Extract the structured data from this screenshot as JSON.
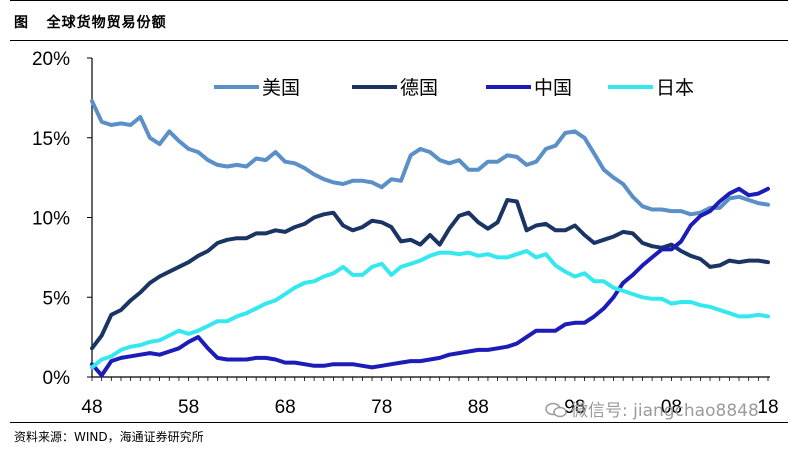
{
  "figure": {
    "title": "图   全球货物贸易份额",
    "source_note": "资料来源：WIND，海通证券研究所",
    "watermark": "微信号: jiangchao8848"
  },
  "chart_data": {
    "type": "line",
    "title": "全球货物贸易份额",
    "xlabel": "",
    "ylabel": "",
    "x_tick_labels": [
      "48",
      "58",
      "68",
      "78",
      "88",
      "98",
      "08",
      "18"
    ],
    "xlim": [
      1948,
      2018
    ],
    "ylim": [
      0,
      20
    ],
    "y_tick_labels": [
      "0%",
      "5%",
      "10%",
      "15%",
      "20%"
    ],
    "legend_position": "top-right",
    "x": [
      1948,
      1949,
      1950,
      1951,
      1952,
      1953,
      1954,
      1955,
      1956,
      1957,
      1958,
      1959,
      1960,
      1961,
      1962,
      1963,
      1964,
      1965,
      1966,
      1967,
      1968,
      1969,
      1970,
      1971,
      1972,
      1973,
      1974,
      1975,
      1976,
      1977,
      1978,
      1979,
      1980,
      1981,
      1982,
      1983,
      1984,
      1985,
      1986,
      1987,
      1988,
      1989,
      1990,
      1991,
      1992,
      1993,
      1994,
      1995,
      1996,
      1997,
      1998,
      1999,
      2000,
      2001,
      2002,
      2003,
      2004,
      2005,
      2006,
      2007,
      2008,
      2009,
      2010,
      2011,
      2012,
      2013,
      2014,
      2015,
      2016,
      2017,
      2018
    ],
    "series": [
      {
        "name": "美国",
        "color": "#5a8fc8",
        "values": [
          17.3,
          16.0,
          15.8,
          15.9,
          15.8,
          16.3,
          15.0,
          14.6,
          15.4,
          14.8,
          14.3,
          14.1,
          13.6,
          13.3,
          13.2,
          13.3,
          13.2,
          13.7,
          13.6,
          14.1,
          13.5,
          13.4,
          13.1,
          12.7,
          12.4,
          12.2,
          12.1,
          12.3,
          12.3,
          12.2,
          11.9,
          12.4,
          12.3,
          13.9,
          14.3,
          14.1,
          13.6,
          13.4,
          13.6,
          13.0,
          13.0,
          13.5,
          13.5,
          13.9,
          13.8,
          13.3,
          13.5,
          14.3,
          14.5,
          15.3,
          15.4,
          15.0,
          14.0,
          13.0,
          12.5,
          12.1,
          11.3,
          10.7,
          10.5,
          10.5,
          10.4,
          10.4,
          10.2,
          10.3,
          10.6,
          10.6,
          11.2,
          11.3,
          11.1,
          10.9,
          10.8
        ],
        "label": "美国"
      },
      {
        "name": "德国",
        "color": "#1a3563",
        "values": [
          1.8,
          2.6,
          3.9,
          4.2,
          4.8,
          5.3,
          5.9,
          6.3,
          6.6,
          6.9,
          7.2,
          7.6,
          7.9,
          8.4,
          8.6,
          8.7,
          8.7,
          9.0,
          9.0,
          9.2,
          9.1,
          9.4,
          9.6,
          10.0,
          10.2,
          10.3,
          9.5,
          9.2,
          9.4,
          9.8,
          9.7,
          9.4,
          8.5,
          8.6,
          8.3,
          8.9,
          8.3,
          9.3,
          10.1,
          10.3,
          9.7,
          9.3,
          9.7,
          11.1,
          11.0,
          9.2,
          9.5,
          9.6,
          9.2,
          9.2,
          9.5,
          8.9,
          8.4,
          8.6,
          8.8,
          9.1,
          9.0,
          8.4,
          8.2,
          8.1,
          8.3,
          7.9,
          7.6,
          7.4,
          6.9,
          7.0,
          7.3,
          7.2,
          7.3,
          7.3,
          7.2
        ],
        "label": "德国"
      },
      {
        "name": "中国",
        "color": "#1c1cb8",
        "values": [
          0.8,
          0.1,
          1.0,
          1.2,
          1.3,
          1.4,
          1.5,
          1.4,
          1.6,
          1.8,
          2.2,
          2.5,
          1.8,
          1.2,
          1.1,
          1.1,
          1.1,
          1.2,
          1.2,
          1.1,
          0.9,
          0.9,
          0.8,
          0.7,
          0.7,
          0.8,
          0.8,
          0.8,
          0.7,
          0.6,
          0.7,
          0.8,
          0.9,
          1.0,
          1.0,
          1.1,
          1.2,
          1.4,
          1.5,
          1.6,
          1.7,
          1.7,
          1.8,
          1.9,
          2.1,
          2.5,
          2.9,
          2.9,
          2.9,
          3.3,
          3.4,
          3.4,
          3.8,
          4.3,
          5.0,
          5.9,
          6.4,
          7.0,
          7.5,
          8.0,
          8.0,
          8.5,
          9.5,
          10.1,
          10.4,
          11.0,
          11.5,
          11.8,
          11.4,
          11.5,
          11.8
        ],
        "label": "中国"
      },
      {
        "name": "日本",
        "color": "#35e8f0",
        "values": [
          0.6,
          1.1,
          1.3,
          1.7,
          1.9,
          2.0,
          2.2,
          2.3,
          2.6,
          2.9,
          2.7,
          2.9,
          3.2,
          3.5,
          3.5,
          3.8,
          4.0,
          4.3,
          4.6,
          4.8,
          5.2,
          5.6,
          5.9,
          6.0,
          6.3,
          6.5,
          6.9,
          6.4,
          6.4,
          6.9,
          7.1,
          6.4,
          6.9,
          7.1,
          7.3,
          7.6,
          7.8,
          7.8,
          7.7,
          7.8,
          7.6,
          7.7,
          7.5,
          7.5,
          7.7,
          7.9,
          7.5,
          7.7,
          7.0,
          6.6,
          6.3,
          6.5,
          6.0,
          6.0,
          5.6,
          5.4,
          5.2,
          5.0,
          4.9,
          4.9,
          4.6,
          4.7,
          4.7,
          4.5,
          4.4,
          4.2,
          4.0,
          3.8,
          3.8,
          3.9,
          3.8
        ],
        "label": "日本"
      }
    ]
  }
}
